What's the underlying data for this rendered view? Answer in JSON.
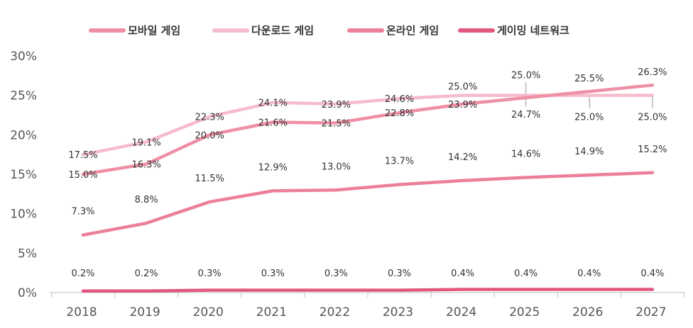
{
  "chart_data": {
    "type": "line",
    "categories": [
      "2018",
      "2019",
      "2020",
      "2021",
      "2022",
      "2023",
      "2024",
      "2025",
      "2026",
      "2027"
    ],
    "series": [
      {
        "name": "모바일 게임",
        "color": "#ef8fa6",
        "values": [
          15.0,
          16.3,
          20.0,
          21.6,
          21.5,
          22.8,
          23.9,
          24.7,
          25.5,
          26.3
        ],
        "labels": [
          "15.0%",
          "16.3%",
          "20.0%",
          "21.6%",
          "21.5%",
          "22.8%",
          "23.9%",
          "24.7%",
          "25.5%",
          "26.3%"
        ]
      },
      {
        "name": "다운로드 게임",
        "color": "#f6bccb",
        "values": [
          17.5,
          19.1,
          22.3,
          24.1,
          23.9,
          24.6,
          25.0,
          25.0,
          25.0,
          25.0
        ],
        "labels": [
          "17.5%",
          "19.1%",
          "22.3%",
          "24.1%",
          "23.9%",
          "24.6%",
          "25.0%",
          "25.0%",
          "25.0%",
          "25.0%"
        ]
      },
      {
        "name": "온라인 게임",
        "color": "#ec7f9a",
        "values": [
          7.3,
          8.8,
          11.5,
          12.9,
          13.0,
          13.7,
          14.2,
          14.6,
          14.9,
          15.2
        ],
        "labels": [
          "7.3%",
          "8.8%",
          "11.5%",
          "12.9%",
          "13.0%",
          "13.7%",
          "14.2%",
          "14.6%",
          "14.9%",
          "15.2%"
        ]
      },
      {
        "name": "게이밍 네트워크",
        "color": "#e2577f",
        "values": [
          0.2,
          0.2,
          0.3,
          0.3,
          0.3,
          0.3,
          0.4,
          0.4,
          0.4,
          0.4
        ],
        "labels": [
          "0.2%",
          "0.2%",
          "0.3%",
          "0.3%",
          "0.3%",
          "0.3%",
          "0.4%",
          "0.4%",
          "0.4%",
          "0.4%"
        ]
      }
    ],
    "y_ticks": [
      "0%",
      "5%",
      "10%",
      "15%",
      "20%",
      "25%",
      "30%"
    ],
    "ylim": [
      0,
      30
    ],
    "grid": false,
    "legend": "top"
  }
}
